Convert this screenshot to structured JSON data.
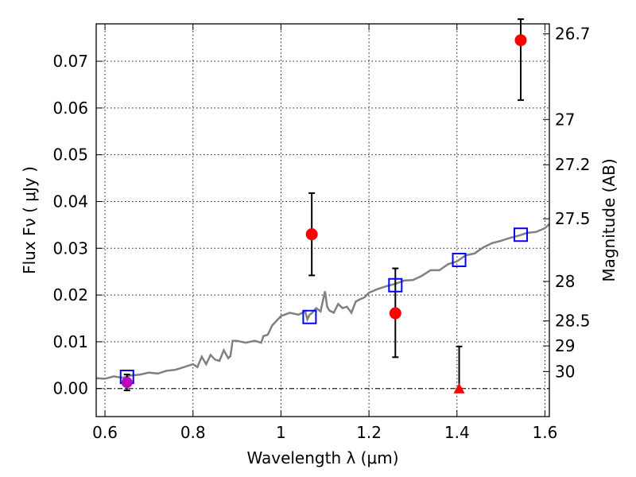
{
  "chart_data": {
    "type": "scatter",
    "xlabel": "Wavelength  λ (μm)",
    "ylabel": "Flux  Fν  ( μJy )",
    "ylabel2": "Magnitude (AB)",
    "xlim": [
      0.58,
      1.61
    ],
    "ylim": [
      -0.006,
      0.078
    ],
    "grid": true,
    "x_ticks": [
      "0.6",
      "0.8",
      "1",
      "1.2",
      "1.4",
      "1.6"
    ],
    "y_ticks": [
      "0.00",
      "0.01",
      "0.02",
      "0.03",
      "0.04",
      "0.05",
      "0.06",
      "0.07"
    ],
    "mag_ticks": [
      "26.7",
      "27",
      "27.2",
      "27.5",
      "28",
      "28.5",
      "29",
      "30"
    ],
    "colors": {
      "observed": "#ff0000",
      "model": "#0000ff",
      "template": "#808080",
      "special": "#bf00bf",
      "errorbar": "#000000"
    },
    "observed_points": [
      {
        "x": 1.07,
        "y": 0.033,
        "yerr_low": 0.0088,
        "yerr_high": 0.0088
      },
      {
        "x": 1.26,
        "y": 0.0161,
        "yerr_low": 0.0094,
        "yerr_high": 0.0096
      },
      {
        "x": 1.545,
        "y": 0.0745,
        "yerr_low": 0.0128,
        "yerr_high": 0.0045
      }
    ],
    "upper_limit_points": [
      {
        "x": 1.405,
        "y": 0.0,
        "yerr_high": 0.009
      }
    ],
    "special_points": [
      {
        "x": 0.65,
        "y": 0.0013,
        "yerr_low": 0.0017,
        "yerr_high": 0.0017
      }
    ],
    "model_points": [
      {
        "x": 0.65,
        "y": 0.0025
      },
      {
        "x": 1.065,
        "y": 0.0153
      },
      {
        "x": 1.26,
        "y": 0.0221
      },
      {
        "x": 1.405,
        "y": 0.0275
      },
      {
        "x": 1.545,
        "y": 0.0329
      }
    ],
    "template_sed": {
      "x": [
        0.58,
        0.6,
        0.62,
        0.64,
        0.66,
        0.68,
        0.7,
        0.72,
        0.74,
        0.76,
        0.78,
        0.8,
        0.81,
        0.82,
        0.83,
        0.84,
        0.85,
        0.86,
        0.87,
        0.88,
        0.885,
        0.89,
        0.9,
        0.92,
        0.94,
        0.955,
        0.96,
        0.97,
        0.98,
        1.0,
        1.02,
        1.04,
        1.055,
        1.06,
        1.065,
        1.07,
        1.08,
        1.09,
        1.1,
        1.105,
        1.11,
        1.12,
        1.13,
        1.14,
        1.15,
        1.16,
        1.17,
        1.18,
        1.19,
        1.2,
        1.22,
        1.24,
        1.26,
        1.28,
        1.3,
        1.32,
        1.34,
        1.36,
        1.38,
        1.4,
        1.42,
        1.44,
        1.46,
        1.48,
        1.5,
        1.52,
        1.54,
        1.56,
        1.58,
        1.6,
        1.61
      ],
      "y": [
        0.0022,
        0.0021,
        0.0026,
        0.0023,
        0.0028,
        0.003,
        0.0034,
        0.0032,
        0.0038,
        0.004,
        0.0046,
        0.0052,
        0.0046,
        0.0068,
        0.0052,
        0.0072,
        0.0062,
        0.0059,
        0.0082,
        0.0065,
        0.0069,
        0.0102,
        0.0102,
        0.0098,
        0.0102,
        0.0098,
        0.0112,
        0.0115,
        0.0135,
        0.0155,
        0.0162,
        0.0158,
        0.0165,
        0.0148,
        0.0158,
        0.0161,
        0.0172,
        0.0165,
        0.0208,
        0.0175,
        0.0167,
        0.0162,
        0.0181,
        0.0172,
        0.0175,
        0.0162,
        0.0186,
        0.0191,
        0.0195,
        0.0205,
        0.0213,
        0.0219,
        0.0224,
        0.0231,
        0.0232,
        0.0241,
        0.0253,
        0.0253,
        0.0266,
        0.0272,
        0.0285,
        0.0289,
        0.0302,
        0.0311,
        0.0316,
        0.0322,
        0.0327,
        0.0333,
        0.0335,
        0.0343,
        0.0352
      ]
    }
  }
}
